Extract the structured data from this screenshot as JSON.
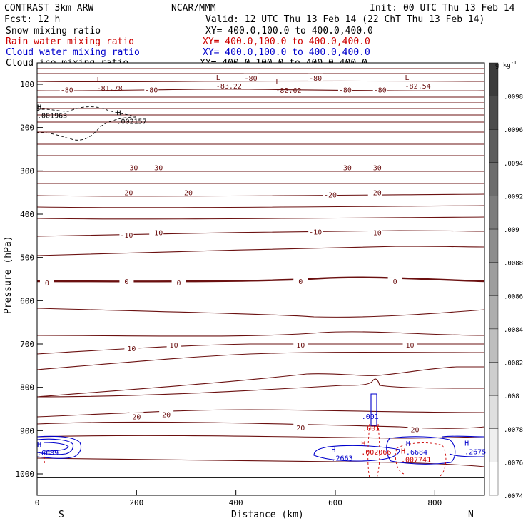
{
  "header": {
    "model": "CONTRAST  3km ARW",
    "org": "NCAR/MMM",
    "init": "Init: 00 UTC Thu 13 Feb 14",
    "fcst": "Fcst:    12 h",
    "valid": "Valid: 12 UTC Thu 13 Feb 14 (22 ChT Thu 13 Feb 14)"
  },
  "legend": [
    {
      "label": "Snow mixing ratio",
      "xy": "",
      "color": "#000000"
    },
    {
      "label": "Rain water mixing ratio",
      "xy": "XY= 400.0,100.0 to 400.0,400.0",
      "color": "#cc0000"
    },
    {
      "label": "Cloud water mixing ratio",
      "xy": "XY= 400.0,100.0 to 400.0,400.0",
      "color": "#0000cc"
    },
    {
      "label": "Cloud ice mixing ratio",
      "xy": "XY= 400.0,100.0 to 400.0,400.0",
      "color": "#000000"
    }
  ],
  "snow_xy": "XY= 400.0,100.0 to 400.0,400.0",
  "colors": {
    "temperature": "#6b1010",
    "rain": "#cc0000",
    "cloud_water": "#0000cc",
    "ice": "#000000"
  },
  "chart_data": {
    "type": "contour-cross-section",
    "xlabel": "Distance (km)",
    "ylabel": "Pressure (hPa)",
    "xlim": [
      0,
      900
    ],
    "ylim": [
      1000,
      50
    ],
    "x_ticks": [
      "0",
      "200",
      "400",
      "600",
      "800"
    ],
    "x_tick_values": [
      0,
      200,
      400,
      600,
      800
    ],
    "y_ticks": [
      "100",
      "200",
      "300",
      "400",
      "500",
      "600",
      "700",
      "800",
      "900",
      "1000"
    ],
    "y_tick_values": [
      100,
      200,
      300,
      400,
      500,
      600,
      700,
      800,
      900,
      1000
    ],
    "endpoints": {
      "left": "S",
      "right": "N"
    },
    "colorbar": {
      "unit": "g kg",
      "unit_exp": "-1",
      "labels": [
        ".0098",
        ".0096",
        ".0094",
        ".0092",
        ".009",
        ".0088",
        ".0086",
        ".0084",
        ".0082",
        ".008",
        ".0078",
        ".0076",
        ".0074"
      ],
      "levels": [
        0.0098,
        0.0096,
        0.0094,
        0.0092,
        0.009,
        0.0088,
        0.0086,
        0.0084,
        0.0082,
        0.008,
        0.0078,
        0.0076,
        0.0074
      ]
    },
    "temperature_labels": [
      {
        "text": "-80",
        "x": 60,
        "p": 112
      },
      {
        "text": "-80",
        "x": 230,
        "p": 112
      },
      {
        "text": "-80",
        "x": 430,
        "p": 85
      },
      {
        "text": "-80",
        "x": 560,
        "p": 85
      },
      {
        "text": "-80",
        "x": 620,
        "p": 112
      },
      {
        "text": "-80",
        "x": 690,
        "p": 112
      },
      {
        "text": "-30",
        "x": 190,
        "p": 292
      },
      {
        "text": "-30",
        "x": 240,
        "p": 292
      },
      {
        "text": "-30",
        "x": 620,
        "p": 292
      },
      {
        "text": "-30",
        "x": 680,
        "p": 292
      },
      {
        "text": "-20",
        "x": 180,
        "p": 350
      },
      {
        "text": "-20",
        "x": 300,
        "p": 350
      },
      {
        "text": "-20",
        "x": 590,
        "p": 355
      },
      {
        "text": "-20",
        "x": 680,
        "p": 350
      },
      {
        "text": "-10",
        "x": 180,
        "p": 448
      },
      {
        "text": "-10",
        "x": 240,
        "p": 442
      },
      {
        "text": "-10",
        "x": 560,
        "p": 440
      },
      {
        "text": "-10",
        "x": 680,
        "p": 442
      },
      {
        "text": "0",
        "x": 20,
        "p": 558
      },
      {
        "text": "0",
        "x": 180,
        "p": 555
      },
      {
        "text": "0",
        "x": 285,
        "p": 558
      },
      {
        "text": "0",
        "x": 530,
        "p": 555
      },
      {
        "text": "0",
        "x": 720,
        "p": 555
      },
      {
        "text": "10",
        "x": 190,
        "p": 710
      },
      {
        "text": "10",
        "x": 275,
        "p": 702
      },
      {
        "text": "10",
        "x": 530,
        "p": 702
      },
      {
        "text": "10",
        "x": 750,
        "p": 702
      },
      {
        "text": "20",
        "x": 200,
        "p": 867
      },
      {
        "text": "20",
        "x": 260,
        "p": 862
      },
      {
        "text": "20",
        "x": 530,
        "p": 893
      },
      {
        "text": "20",
        "x": 760,
        "p": 897
      }
    ],
    "extrema": [
      {
        "kind": "L",
        "value": "-81.78",
        "x": 120,
        "p": 105
      },
      {
        "kind": "L",
        "value": "-83.22",
        "x": 360,
        "p": 100
      },
      {
        "kind": "L",
        "value": "-82.62",
        "x": 480,
        "p": 110
      },
      {
        "kind": "L",
        "value": "-82.54",
        "x": 740,
        "p": 100
      },
      {
        "kind": "H",
        "value": ".001963",
        "x": 0,
        "p": 168
      },
      {
        "kind": "H",
        "value": ".002157",
        "x": 160,
        "p": 182
      },
      {
        "kind": "H",
        "value": ".6689",
        "x": 0,
        "p": 947
      },
      {
        "kind": "H",
        "value": ".2663",
        "x": 592,
        "p": 960
      },
      {
        "kind": "H",
        "value": ".002066",
        "x": 652,
        "p": 946
      },
      {
        "kind": "H",
        "value": ".6684",
        "x": 742,
        "p": 946
      },
      {
        "kind": "H",
        "value": ".007741",
        "x": 732,
        "p": 963
      },
      {
        "kind": "H",
        "value": ".2675",
        "x": 860,
        "p": 945
      }
    ],
    "point_labels": [
      {
        "text": ".001",
        "x": 670,
        "p": 873,
        "series": "cloud_water"
      },
      {
        "text": ".001",
        "x": 672,
        "p": 900,
        "series": "rain"
      }
    ]
  }
}
